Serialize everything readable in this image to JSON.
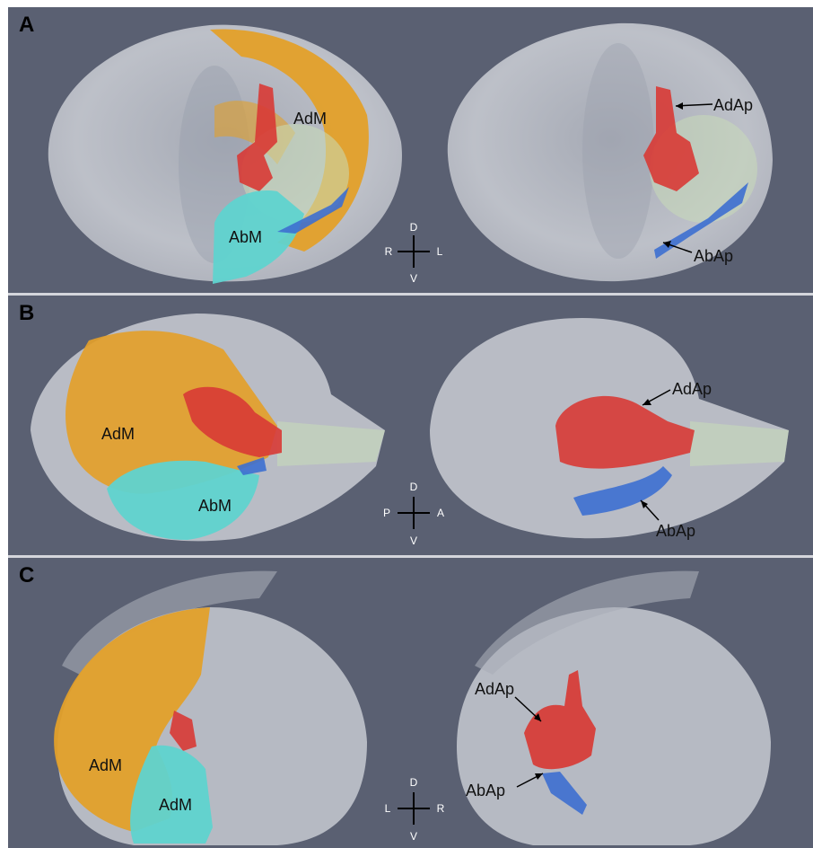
{
  "panels": [
    {
      "letter": "A",
      "labels": {
        "muscle_top": "AdM",
        "muscle_bottom": "AbM",
        "apod_top": "AdAp",
        "apod_bottom": "AbAp"
      },
      "compass": {
        "up": "D",
        "down": "V",
        "left": "R",
        "right": "L"
      }
    },
    {
      "letter": "B",
      "labels": {
        "muscle_top": "AdM",
        "muscle_bottom": "AbM",
        "apod_top": "AdAp",
        "apod_bottom": "AbAp"
      },
      "compass": {
        "up": "D",
        "down": "V",
        "left": "P",
        "right": "A"
      }
    },
    {
      "letter": "C",
      "labels": {
        "muscle_top": "AdM",
        "muscle_bottom": "AdM",
        "apod_top": "AdAp",
        "apod_bottom": "AbAp"
      },
      "compass": {
        "up": "D",
        "down": "V",
        "left": "L",
        "right": "R"
      }
    }
  ],
  "colors": {
    "background": "#5a6072",
    "shell": "#c9ccd3",
    "adductor_muscle": "#e3a02a",
    "abductor_muscle": "#5fd3cf",
    "adductor_apodeme": "#d83a35",
    "abductor_apodeme": "#3d6fd0",
    "membrane": "#c9ddb8"
  }
}
